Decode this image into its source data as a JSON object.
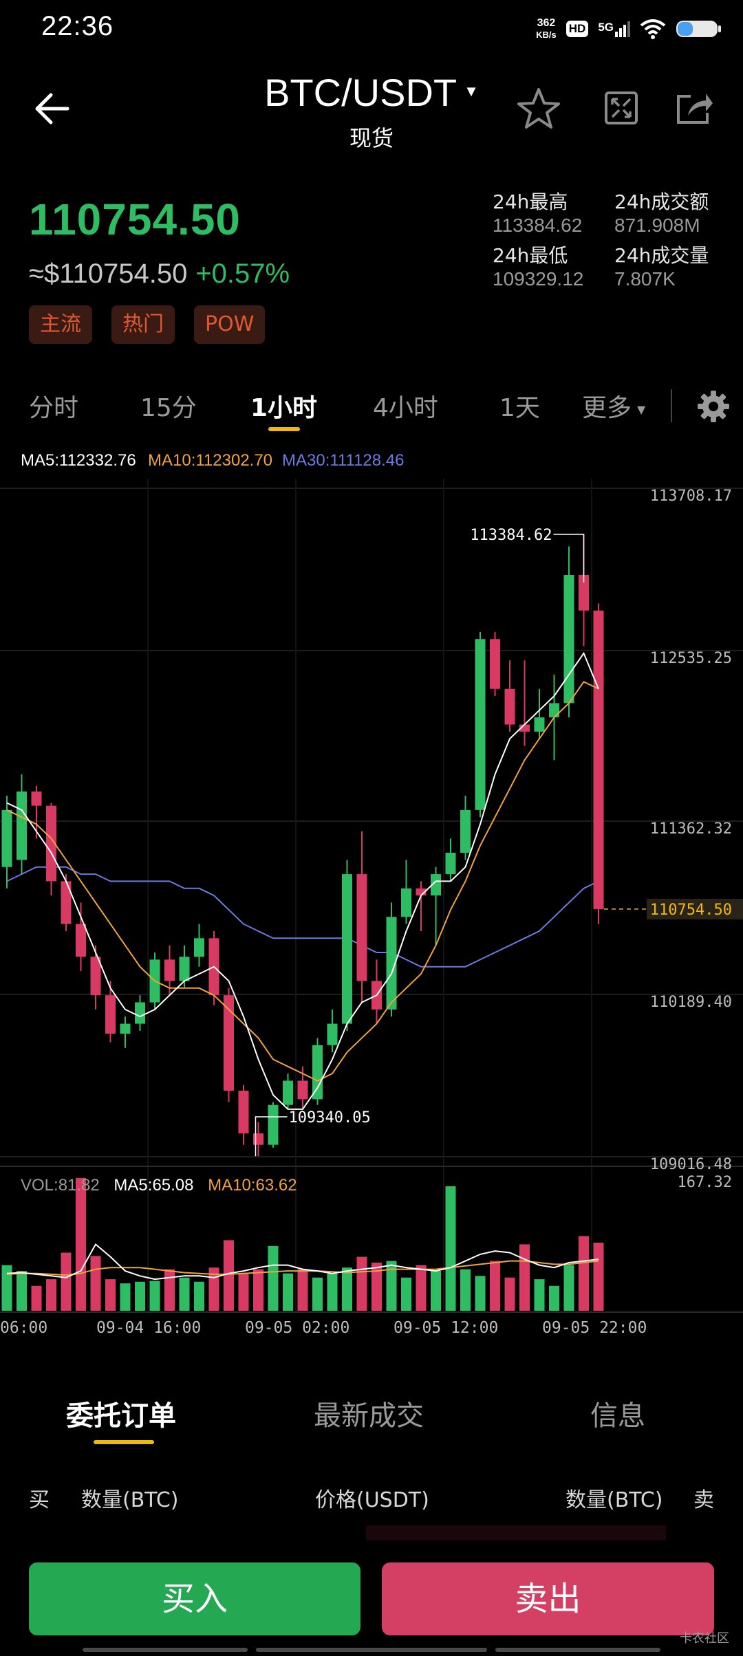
{
  "status_bar": {
    "time": "22:36",
    "speed_value": "362",
    "speed_unit": "KB/s",
    "hd_label": "HD",
    "network_label": "5G"
  },
  "header": {
    "pair": "BTC/USDT",
    "market_type": "现货"
  },
  "ticker": {
    "last_price": "110754.50",
    "usd_value": "≈$110754.50",
    "change_percent": "+0.57%",
    "tags": [
      "主流",
      "热门",
      "POW"
    ],
    "stats": [
      {
        "label": "24h最高",
        "value": "113384.62"
      },
      {
        "label": "24h成交额",
        "value": "871.908M"
      },
      {
        "label": "24h最低",
        "value": "109329.12"
      },
      {
        "label": "24h成交量",
        "value": "7.807K"
      }
    ]
  },
  "timeframe_tabs": [
    {
      "label": "分时"
    },
    {
      "label": "15分"
    },
    {
      "label": "1小时",
      "active": true
    },
    {
      "label": "4小时"
    },
    {
      "label": "1天"
    },
    {
      "label": "更多"
    }
  ],
  "ma_legend": {
    "ma5": "MA5:112332.76",
    "ma10": "MA10:112302.70",
    "ma30": "MA30:111128.46"
  },
  "colors": {
    "up": "#2ebd63",
    "down": "#d83a64",
    "accent": "#f0b90b",
    "ma5": "#ffffff",
    "ma10": "#f0a33c",
    "ma30": "#6a7be0"
  },
  "price_axis": [
    "113708.17",
    "112535.25",
    "111362.32",
    "110189.40",
    "109016.48"
  ],
  "annotations": {
    "high": "113384.62",
    "low": "109340.05",
    "current": "110754.50"
  },
  "vol_legend": {
    "vol": "VOL:81.82",
    "ma5": "MA5:65.08",
    "ma10": "MA10:63.62",
    "max": "167.32"
  },
  "time_axis": [
    "06:00",
    "09-04  16:00",
    "09-05  02:00",
    "09-05  12:00",
    "09-05  22:00"
  ],
  "chart_data": {
    "type": "candlestick",
    "ylim": [
      109016.48,
      113708.17
    ],
    "vol_ylim": [
      0,
      167.32
    ],
    "candles": [
      {
        "o": 111050,
        "h": 111550,
        "l": 110900,
        "c": 111450,
        "v": 55
      },
      {
        "o": 111100,
        "h": 111700,
        "l": 111000,
        "c": 111580,
        "v": 48
      },
      {
        "o": 111580,
        "h": 111620,
        "l": 111250,
        "c": 111480,
        "v": 30
      },
      {
        "o": 111480,
        "h": 111500,
        "l": 110850,
        "c": 110950,
        "v": 38
      },
      {
        "o": 110950,
        "h": 111000,
        "l": 110600,
        "c": 110650,
        "v": 70
      },
      {
        "o": 110650,
        "h": 110800,
        "l": 110320,
        "c": 110420,
        "v": 160
      },
      {
        "o": 110420,
        "h": 110500,
        "l": 110050,
        "c": 110150,
        "v": 66
      },
      {
        "o": 110150,
        "h": 110250,
        "l": 109820,
        "c": 109880,
        "v": 38
      },
      {
        "o": 109880,
        "h": 110000,
        "l": 109780,
        "c": 109950,
        "v": 33
      },
      {
        "o": 109950,
        "h": 110150,
        "l": 109900,
        "c": 110100,
        "v": 35
      },
      {
        "o": 110100,
        "h": 110450,
        "l": 110050,
        "c": 110400,
        "v": 36
      },
      {
        "o": 110400,
        "h": 110500,
        "l": 110150,
        "c": 110250,
        "v": 50
      },
      {
        "o": 110250,
        "h": 110500,
        "l": 110200,
        "c": 110420,
        "v": 40
      },
      {
        "o": 110420,
        "h": 110650,
        "l": 110350,
        "c": 110550,
        "v": 35
      },
      {
        "o": 110550,
        "h": 110600,
        "l": 110080,
        "c": 110150,
        "v": 52
      },
      {
        "o": 110150,
        "h": 110200,
        "l": 109400,
        "c": 109480,
        "v": 85
      },
      {
        "o": 109480,
        "h": 109520,
        "l": 109100,
        "c": 109180,
        "v": 45
      },
      {
        "o": 109180,
        "h": 109260,
        "l": 109020,
        "c": 109100,
        "v": 50
      },
      {
        "o": 109100,
        "h": 109400,
        "l": 109080,
        "c": 109380,
        "v": 78
      },
      {
        "o": 109380,
        "h": 109600,
        "l": 109350,
        "c": 109550,
        "v": 45
      },
      {
        "o": 109550,
        "h": 109650,
        "l": 109350,
        "c": 109420,
        "v": 50
      },
      {
        "o": 109420,
        "h": 109850,
        "l": 109380,
        "c": 109800,
        "v": 40
      },
      {
        "o": 109800,
        "h": 110050,
        "l": 109750,
        "c": 109950,
        "v": 45
      },
      {
        "o": 109950,
        "h": 111100,
        "l": 109900,
        "c": 111000,
        "v": 52
      },
      {
        "o": 111000,
        "h": 111300,
        "l": 110100,
        "c": 110250,
        "v": 65
      },
      {
        "o": 110250,
        "h": 110400,
        "l": 109950,
        "c": 110050,
        "v": 58
      },
      {
        "o": 110050,
        "h": 110800,
        "l": 110000,
        "c": 110700,
        "v": 60
      },
      {
        "o": 110700,
        "h": 111100,
        "l": 110650,
        "c": 110900,
        "v": 40
      },
      {
        "o": 110900,
        "h": 110950,
        "l": 110600,
        "c": 110850,
        "v": 55
      },
      {
        "o": 110850,
        "h": 111050,
        "l": 110500,
        "c": 111000,
        "v": 48
      },
      {
        "o": 111000,
        "h": 111250,
        "l": 110950,
        "c": 111150,
        "v": 150
      },
      {
        "o": 111150,
        "h": 111550,
        "l": 111100,
        "c": 111450,
        "v": 50
      },
      {
        "o": 111450,
        "h": 112700,
        "l": 111400,
        "c": 112650,
        "v": 42
      },
      {
        "o": 112650,
        "h": 112700,
        "l": 112250,
        "c": 112300,
        "v": 60
      },
      {
        "o": 112300,
        "h": 112500,
        "l": 112000,
        "c": 112050,
        "v": 40
      },
      {
        "o": 112050,
        "h": 112500,
        "l": 111900,
        "c": 112000,
        "v": 80
      },
      {
        "o": 112000,
        "h": 112300,
        "l": 111950,
        "c": 112100,
        "v": 38
      },
      {
        "o": 112100,
        "h": 112400,
        "l": 111800,
        "c": 112200,
        "v": 30
      },
      {
        "o": 112200,
        "h": 113300,
        "l": 112100,
        "c": 113100,
        "v": 55
      },
      {
        "o": 113100,
        "h": 113384.62,
        "l": 112600,
        "c": 112850,
        "v": 90
      },
      {
        "o": 112850,
        "h": 112900,
        "l": 110650,
        "c": 110754.5,
        "v": 82
      }
    ],
    "ma5": [
      111500,
      111450,
      111300,
      111150,
      110950,
      110700,
      110450,
      110200,
      110050,
      110000,
      110050,
      110150,
      110250,
      110300,
      110350,
      110250,
      110000,
      109700,
      109450,
      109350,
      109350,
      109500,
      109700,
      109950,
      110100,
      110150,
      110300,
      110600,
      110850,
      110950,
      110950,
      111050,
      111350,
      111700,
      111950,
      112050,
      112150,
      112250,
      112400,
      112550,
      112300
    ],
    "ma10": [
      111450,
      111400,
      111350,
      111250,
      111100,
      110950,
      110800,
      110650,
      110500,
      110350,
      110250,
      110200,
      110200,
      110200,
      110150,
      110050,
      109950,
      109850,
      109700,
      109650,
      109600,
      109550,
      109600,
      109750,
      109850,
      109950,
      110100,
      110200,
      110300,
      110500,
      110750,
      110950,
      111200,
      111400,
      111600,
      111800,
      111950,
      112100,
      112200,
      112350,
      112300
    ],
    "ma30": [
      110950,
      111000,
      111050,
      111050,
      111050,
      111000,
      111000,
      110950,
      110950,
      110950,
      110950,
      110950,
      110900,
      110900,
      110850,
      110750,
      110650,
      110600,
      110550,
      110550,
      110550,
      110550,
      110550,
      110550,
      110500,
      110450,
      110450,
      110400,
      110350,
      110350,
      110350,
      110350,
      110400,
      110450,
      110500,
      110550,
      110600,
      110700,
      110800,
      110900,
      110950
    ],
    "vol_ma5": [
      45,
      46,
      44,
      42,
      40,
      48,
      80,
      65,
      48,
      42,
      38,
      40,
      42,
      42,
      40,
      45,
      48,
      52,
      55,
      55,
      50,
      48,
      45,
      48,
      50,
      52,
      55,
      52,
      50,
      48,
      52,
      60,
      68,
      72,
      70,
      62,
      55,
      52,
      58,
      60,
      62
    ],
    "vol_ma10": [
      44,
      45,
      45,
      44,
      43,
      45,
      50,
      52,
      52,
      52,
      50,
      48,
      46,
      45,
      44,
      44,
      45,
      46,
      47,
      48,
      48,
      48,
      47,
      46,
      47,
      48,
      50,
      50,
      50,
      50,
      52,
      54,
      56,
      58,
      60,
      60,
      58,
      56,
      56,
      58,
      60
    ]
  },
  "order_tabs": [
    {
      "label": "委托订单",
      "active": true
    },
    {
      "label": "最新成交"
    },
    {
      "label": "信息"
    }
  ],
  "order_headers": {
    "buy": "买",
    "buy_qty": "数量(BTC)",
    "price": "价格(USDT)",
    "sell_qty": "数量(BTC)",
    "sell": "卖"
  },
  "actions": {
    "buy": "买入",
    "sell": "卖出"
  },
  "watermark": "卡农社区"
}
